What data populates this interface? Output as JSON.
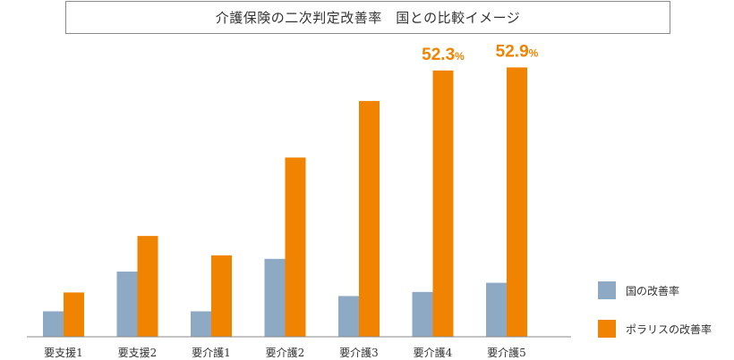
{
  "chart_data": {
    "type": "bar",
    "title": "介護保険の二次判定改善率　国との比較イメージ",
    "categories": [
      "要支援1",
      "要支援2",
      "要介護1",
      "要介護2",
      "要介護3",
      "要介護4",
      "要介護5"
    ],
    "series": [
      {
        "name": "国の改善率",
        "color": "#8ea9c4",
        "values": [
          5.0,
          12.8,
          5.0,
          15.3,
          8.0,
          8.8,
          10.6
        ]
      },
      {
        "name": "ポラリスの改善率",
        "color": "#f08300",
        "values": [
          8.7,
          19.8,
          16.0,
          35.2,
          46.3,
          52.3,
          52.9
        ]
      }
    ],
    "annotations": [
      {
        "category": "要介護4",
        "series": "ポラリスの改善率",
        "value": "52.3",
        "unit": "%"
      },
      {
        "category": "要介護5",
        "series": "ポラリスの改善率",
        "value": "52.9",
        "unit": "%"
      }
    ],
    "ylim": [
      0,
      60
    ],
    "xlabel": "",
    "ylabel": "",
    "grid": false,
    "legend": "right"
  }
}
